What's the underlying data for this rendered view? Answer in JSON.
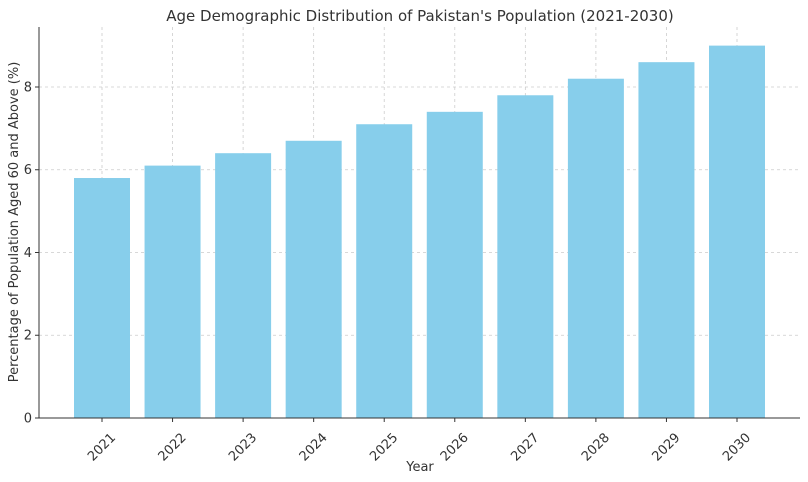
{
  "chart_data": {
    "type": "bar",
    "title": "Age Demographic Distribution of Pakistan's Population (2021-2030)",
    "xlabel": "Year",
    "ylabel": "Percentage of Population Aged 60 and Above (%)",
    "categories": [
      "2021",
      "2022",
      "2023",
      "2024",
      "2025",
      "2026",
      "2027",
      "2028",
      "2029",
      "2030"
    ],
    "values": [
      5.8,
      6.1,
      6.4,
      6.7,
      7.1,
      7.4,
      7.8,
      8.2,
      8.6,
      9.0
    ],
    "ylim": [
      0,
      9.45
    ],
    "yticks": [
      0,
      2,
      4,
      6,
      8
    ],
    "grid": true,
    "bar_color": "#87CEEB",
    "x_tick_rotation": 45
  }
}
